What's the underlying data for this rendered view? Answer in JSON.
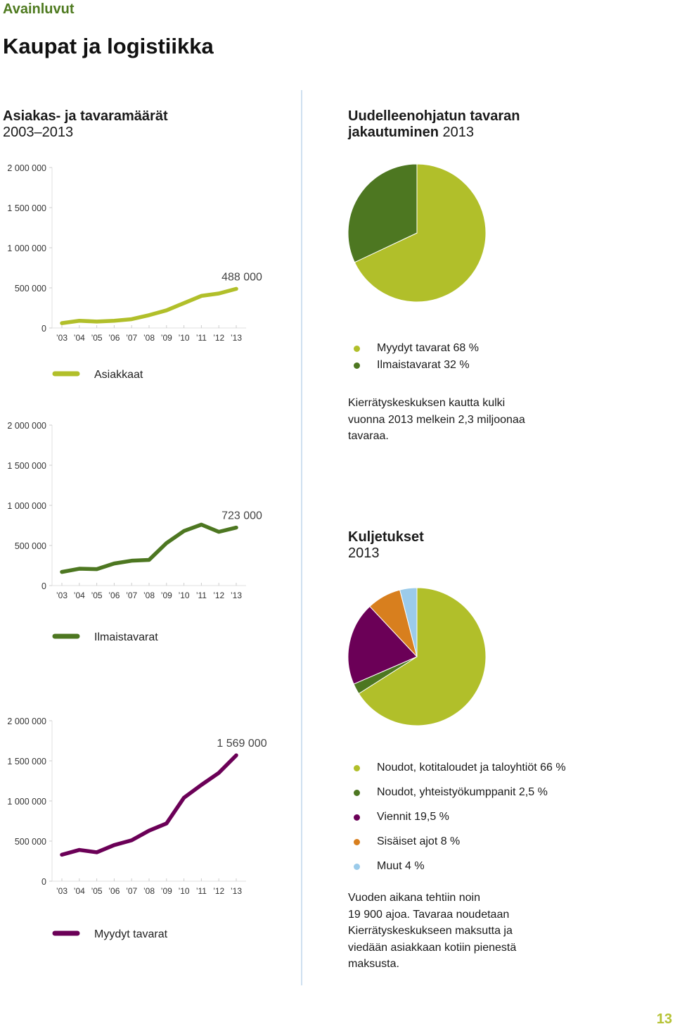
{
  "header": {
    "section": "Avainluvut",
    "title": "Kaupat ja logistiikka"
  },
  "left_heading": {
    "title": "Asiakas- ja tavaramäärät",
    "subtitle": "2003–2013"
  },
  "right_heading1": {
    "title_line1": "Uudelleenohjatun tavaran",
    "title_line2": "jakautuminen",
    "year": "2013"
  },
  "right_heading2": {
    "title": "Kuljetukset",
    "year": "2013"
  },
  "pie1_legend": [
    {
      "label": "Myydyt tavarat 68 %",
      "color": "#b1bf2a"
    },
    {
      "label": "Ilmaistavarat 32 %",
      "color": "#4d7721"
    }
  ],
  "pie2_legend": [
    {
      "label": "Noudot, kotitaloudet ja taloyhtiöt 66 %",
      "color": "#b1bf2a"
    },
    {
      "label": "Noudot, yhteistyökumppanit 2,5 %",
      "color": "#4d7721"
    },
    {
      "label": "Viennit 19,5 %",
      "color": "#6b0057"
    },
    {
      "label": "Sisäiset ajot 8 %",
      "color": "#d87f1e"
    },
    {
      "label": "Muut 4 %",
      "color": "#9bcbea"
    }
  ],
  "text1": [
    "Kierrätyskeskuksen kautta kulki",
    "vuonna 2013 melkein 2,3 miljoonaa",
    "tavaraa."
  ],
  "text2": [
    "Vuoden aikana tehtiin noin",
    "19 900 ajoa. Tavaraa noudetaan",
    "Kierrätyskeskukseen maksutta ja",
    "viedään asiakkaan kotiin pienestä",
    "maksusta."
  ],
  "page_number": "13",
  "chart_data": [
    {
      "type": "line",
      "title": "Asiakkaat",
      "color": "#b1bf2a",
      "y_ticks": [
        "0",
        "500 000",
        "1 000 000",
        "1 500 000",
        "2 000 000"
      ],
      "ylim": [
        0,
        2000000
      ],
      "x": [
        "’03",
        "’04",
        "’05",
        "’06",
        "’07",
        "’08",
        "’09",
        "’10",
        "’11",
        "’12",
        "’13"
      ],
      "values": [
        60000,
        90000,
        80000,
        90000,
        110000,
        160000,
        220000,
        310000,
        400000,
        430000,
        488000
      ],
      "annotation": "488 000",
      "legend": "Asiakkaat"
    },
    {
      "type": "line",
      "title": "Ilmaistavarat",
      "color": "#4d7721",
      "y_ticks": [
        "0",
        "500 000",
        "1 000 000",
        "1 500 000",
        "2 000 000"
      ],
      "ylim": [
        0,
        2000000
      ],
      "x": [
        "’03",
        "’04",
        "’05",
        "’06",
        "’07",
        "’08",
        "’09",
        "’10",
        "’11",
        "’12",
        "’13"
      ],
      "values": [
        170000,
        210000,
        205000,
        275000,
        310000,
        320000,
        530000,
        680000,
        760000,
        670000,
        723000
      ],
      "annotation": "723 000",
      "legend": "Ilmaistavarat"
    },
    {
      "type": "line",
      "title": "Myydyt tavarat",
      "color": "#6b0057",
      "y_ticks": [
        "0",
        "500 000",
        "1 000 000",
        "1 500 000",
        "2 000 000"
      ],
      "ylim": [
        0,
        2000000
      ],
      "x": [
        "’03",
        "’04",
        "’05",
        "’06",
        "’07",
        "’08",
        "’09",
        "’10",
        "’11",
        "’12",
        "’13"
      ],
      "values": [
        330000,
        390000,
        360000,
        450000,
        510000,
        630000,
        720000,
        1040000,
        1200000,
        1350000,
        1569000
      ],
      "annotation": "1 569 000",
      "legend": "Myydyt tavarat"
    },
    {
      "type": "pie",
      "title": "Uudelleenohjatun tavaran jakautuminen 2013",
      "labels": [
        "Myydyt tavarat",
        "Ilmaistavarat"
      ],
      "values": [
        68,
        32
      ],
      "colors": [
        "#b1bf2a",
        "#4d7721"
      ]
    },
    {
      "type": "pie",
      "title": "Kuljetukset 2013",
      "labels": [
        "Noudot, kotitaloudet ja taloyhtiöt",
        "Noudot, yhteistyökumppanit",
        "Viennit",
        "Sisäiset ajot",
        "Muut"
      ],
      "values": [
        66,
        2.5,
        19.5,
        8,
        4
      ],
      "colors": [
        "#b1bf2a",
        "#4d7721",
        "#6b0057",
        "#d87f1e",
        "#9bcbea"
      ]
    }
  ]
}
